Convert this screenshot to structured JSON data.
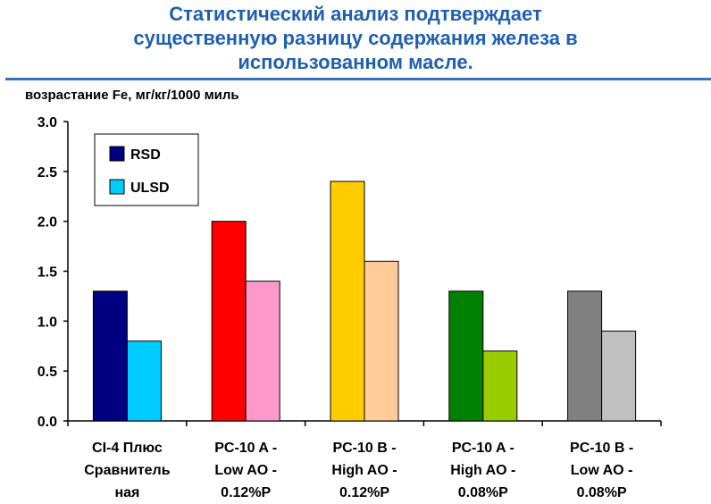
{
  "title_lines": [
    "Статистический анализ подтверждает",
    "существенную разницу содержания железа в",
    "использованном масле."
  ],
  "chart_data": {
    "type": "bar",
    "ylabel": "возрастание Fe, мг/кг/1000 миль",
    "ylim": [
      0,
      3.0
    ],
    "yticks": [
      "0.0",
      "0.5",
      "1.0",
      "1.5",
      "2.0",
      "2.5",
      "3.0"
    ],
    "grid": false,
    "legend_placement": "top-left",
    "categories": [
      [
        "CI-4 Плюс",
        "Сравнитель",
        "ная"
      ],
      [
        "PC-10 A -",
        "Low AO -",
        "0.12%P"
      ],
      [
        "PC-10 B -",
        "High AO -",
        "0.12%P"
      ],
      [
        "PC-10 A -",
        "High AO -",
        "0.08%P"
      ],
      [
        "PC-10 B -",
        "Low AO -",
        "0.08%P"
      ]
    ],
    "series": [
      {
        "name": "RSD",
        "values": [
          1.3,
          2.0,
          2.4,
          1.3,
          1.3
        ],
        "colors": [
          "#000080",
          "#ff0000",
          "#ffcc00",
          "#008000",
          "#808080"
        ]
      },
      {
        "name": "ULSD",
        "values": [
          0.8,
          1.4,
          1.6,
          0.7,
          0.9
        ],
        "colors": [
          "#00ccff",
          "#ff99cc",
          "#ffcc99",
          "#99cc00",
          "#c0c0c0"
        ]
      }
    ],
    "legend": [
      {
        "label": "RSD",
        "color": "#000080"
      },
      {
        "label": "ULSD",
        "color": "#00ccff"
      }
    ]
  }
}
